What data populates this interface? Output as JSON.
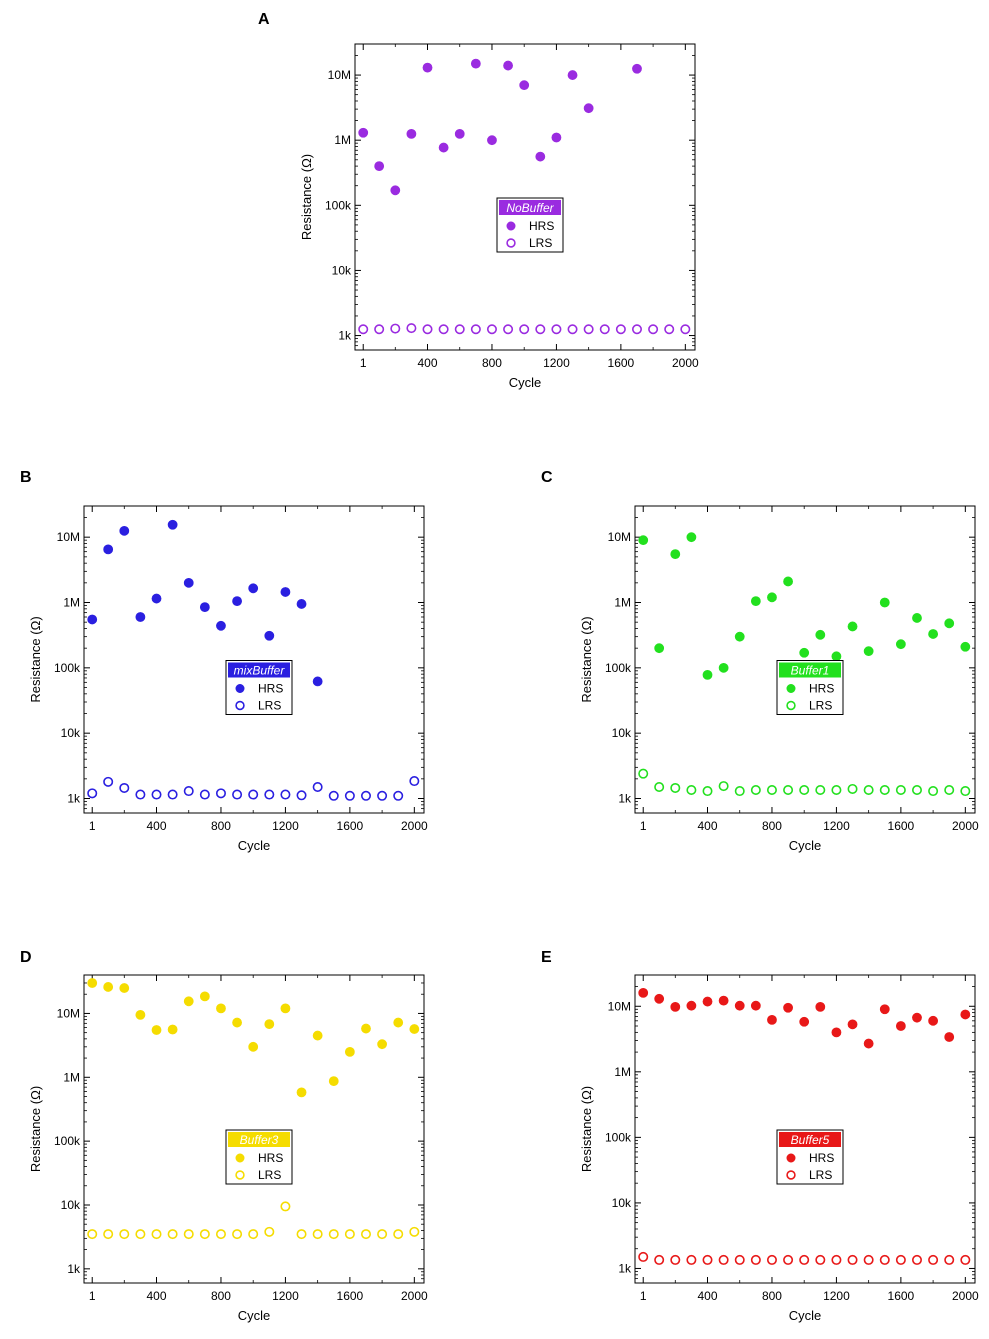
{
  "chart_data": [
    {
      "panel_label": "A",
      "type": "scatter",
      "xlabel": "Cycle",
      "ylabel": "Resistance (Ω)",
      "yscale": "log",
      "xlim": [
        -50,
        2060
      ],
      "ylim": [
        600,
        30000000
      ],
      "xticks": [
        1,
        400,
        800,
        1200,
        1600,
        2000
      ],
      "xtick_labels": [
        "1",
        "400",
        "800",
        "1200",
        "1600",
        "2000"
      ],
      "yticks": [
        1000,
        10000,
        100000,
        1000000,
        10000000
      ],
      "ytick_labels": [
        "1k",
        "10k",
        "100k",
        "1M",
        "10M"
      ],
      "color": "#9a2be0",
      "legend": {
        "title": "NoBuffer",
        "entries": [
          "HRS",
          "LRS"
        ],
        "position": "center"
      },
      "series": [
        {
          "name": "HRS",
          "marker": "filled-circle",
          "x": [
            1,
            100,
            200,
            300,
            400,
            500,
            600,
            700,
            800,
            900,
            1000,
            1100,
            1200,
            1300,
            1400,
            1700
          ],
          "values": [
            1300000,
            400000,
            170000,
            1250000,
            13000000,
            770000,
            1250000,
            15000000,
            1000000,
            14000000,
            7000000,
            560000,
            1100000,
            10000000,
            3100000,
            12500000
          ]
        },
        {
          "name": "LRS",
          "marker": "open-circle",
          "x": [
            1,
            100,
            200,
            300,
            400,
            500,
            600,
            700,
            800,
            900,
            1000,
            1100,
            1200,
            1300,
            1400,
            1500,
            1600,
            1700,
            1800,
            1900,
            2000
          ],
          "values": [
            1250,
            1250,
            1280,
            1300,
            1250,
            1250,
            1250,
            1250,
            1250,
            1250,
            1250,
            1250,
            1250,
            1250,
            1250,
            1250,
            1250,
            1250,
            1250,
            1250,
            1250
          ]
        }
      ]
    },
    {
      "panel_label": "B",
      "type": "scatter",
      "xlabel": "Cycle",
      "ylabel": "Resistance (Ω)",
      "yscale": "log",
      "xlim": [
        -50,
        2060
      ],
      "ylim": [
        600,
        30000000
      ],
      "xticks": [
        1,
        400,
        800,
        1200,
        1600,
        2000
      ],
      "xtick_labels": [
        "1",
        "400",
        "800",
        "1200",
        "1600",
        "2000"
      ],
      "yticks": [
        1000,
        10000,
        100000,
        1000000,
        10000000
      ],
      "ytick_labels": [
        "1k",
        "10k",
        "100k",
        "1M",
        "10M"
      ],
      "color": "#2a1fe0",
      "legend": {
        "title": "mixBuffer",
        "entries": [
          "HRS",
          "LRS"
        ],
        "position": "center"
      },
      "series": [
        {
          "name": "HRS",
          "marker": "filled-circle",
          "x": [
            1,
            100,
            200,
            300,
            400,
            500,
            600,
            700,
            800,
            900,
            1000,
            1100,
            1200,
            1300,
            1400
          ],
          "values": [
            550000,
            6500000,
            12500000,
            600000,
            1150000,
            15500000,
            2000000,
            850000,
            440000,
            1050000,
            1650000,
            310000,
            1450000,
            950000,
            62000
          ]
        },
        {
          "name": "LRS",
          "marker": "open-circle",
          "x": [
            1,
            100,
            200,
            300,
            400,
            500,
            600,
            700,
            800,
            900,
            1000,
            1100,
            1200,
            1300,
            1400,
            1500,
            1600,
            1700,
            1800,
            1900,
            2000
          ],
          "values": [
            1200,
            1800,
            1450,
            1150,
            1150,
            1150,
            1300,
            1150,
            1200,
            1150,
            1150,
            1150,
            1150,
            1120,
            1500,
            1100,
            1100,
            1100,
            1100,
            1100,
            1850
          ]
        }
      ]
    },
    {
      "panel_label": "C",
      "type": "scatter",
      "xlabel": "Cycle",
      "ylabel": "Resistance (Ω)",
      "yscale": "log",
      "xlim": [
        -50,
        2060
      ],
      "ylim": [
        600,
        30000000
      ],
      "xticks": [
        1,
        400,
        800,
        1200,
        1600,
        2000
      ],
      "xtick_labels": [
        "1",
        "400",
        "800",
        "1200",
        "1600",
        "2000"
      ],
      "yticks": [
        1000,
        10000,
        100000,
        1000000,
        10000000
      ],
      "ytick_labels": [
        "1k",
        "10k",
        "100k",
        "1M",
        "10M"
      ],
      "color": "#22e01e",
      "legend": {
        "title": "Buffer1",
        "entries": [
          "HRS",
          "LRS"
        ],
        "position": "center"
      },
      "series": [
        {
          "name": "HRS",
          "marker": "filled-circle",
          "x": [
            1,
            100,
            200,
            300,
            400,
            500,
            600,
            700,
            800,
            900,
            1000,
            1100,
            1200,
            1300,
            1400,
            1500,
            1600,
            1700,
            1800,
            1900,
            2000
          ],
          "values": [
            9000000,
            200000,
            5500000,
            10000000,
            78000,
            100000,
            300000,
            1050000,
            1200000,
            2100000,
            170000,
            320000,
            150000,
            430000,
            180000,
            1000000,
            230000,
            580000,
            330000,
            480000,
            210000
          ]
        },
        {
          "name": "LRS",
          "marker": "open-circle",
          "x": [
            1,
            100,
            200,
            300,
            400,
            500,
            600,
            700,
            800,
            900,
            1000,
            1100,
            1200,
            1300,
            1400,
            1500,
            1600,
            1700,
            1800,
            1900,
            2000
          ],
          "values": [
            2400,
            1500,
            1450,
            1350,
            1300,
            1550,
            1300,
            1350,
            1350,
            1350,
            1350,
            1350,
            1350,
            1400,
            1350,
            1350,
            1350,
            1350,
            1300,
            1350,
            1300
          ]
        }
      ]
    },
    {
      "panel_label": "D",
      "type": "scatter",
      "xlabel": "Cycle",
      "ylabel": "Resistance (Ω)",
      "yscale": "log",
      "xlim": [
        -50,
        2060
      ],
      "ylim": [
        600,
        40000000
      ],
      "xticks": [
        1,
        400,
        800,
        1200,
        1600,
        2000
      ],
      "xtick_labels": [
        "1",
        "400",
        "800",
        "1200",
        "1600",
        "2000"
      ],
      "yticks": [
        1000,
        10000,
        100000,
        1000000,
        10000000
      ],
      "ytick_labels": [
        "1k",
        "10k",
        "100k",
        "1M",
        "10M"
      ],
      "color": "#f5dc00",
      "legend": {
        "title": "Buffer3",
        "entries": [
          "HRS",
          "LRS"
        ],
        "position": "center"
      },
      "series": [
        {
          "name": "HRS",
          "marker": "filled-circle",
          "x": [
            1,
            100,
            200,
            300,
            400,
            500,
            600,
            700,
            800,
            900,
            1000,
            1100,
            1200,
            1300,
            1400,
            1500,
            1600,
            1700,
            1800,
            1900,
            2000
          ],
          "values": [
            30000000,
            26000000,
            25000000,
            9500000,
            5500000,
            5600000,
            15500000,
            18500000,
            12000000,
            7200000,
            3000000,
            6800000,
            12000000,
            580000,
            4500000,
            870000,
            2500000,
            5800000,
            3300000,
            7200000,
            5700000
          ]
        },
        {
          "name": "LRS",
          "marker": "open-circle",
          "x": [
            1,
            100,
            200,
            300,
            400,
            500,
            600,
            700,
            800,
            900,
            1000,
            1100,
            1200,
            1300,
            1400,
            1500,
            1600,
            1700,
            1800,
            1900,
            2000
          ],
          "values": [
            3500,
            3500,
            3500,
            3500,
            3500,
            3500,
            3500,
            3500,
            3500,
            3500,
            3500,
            3800,
            9500,
            3500,
            3500,
            3500,
            3500,
            3500,
            3500,
            3500,
            3800
          ]
        }
      ]
    },
    {
      "panel_label": "E",
      "type": "scatter",
      "xlabel": "Cycle",
      "ylabel": "Resistance (Ω)",
      "yscale": "log",
      "xlim": [
        -50,
        2060
      ],
      "ylim": [
        600,
        30000000
      ],
      "xticks": [
        1,
        400,
        800,
        1200,
        1600,
        2000
      ],
      "xtick_labels": [
        "1",
        "400",
        "800",
        "1200",
        "1600",
        "2000"
      ],
      "yticks": [
        1000,
        10000,
        100000,
        1000000,
        10000000
      ],
      "ytick_labels": [
        "1k",
        "10k",
        "100k",
        "1M",
        "10M"
      ],
      "color": "#e81818",
      "legend": {
        "title": "Buffer5",
        "entries": [
          "HRS",
          "LRS"
        ],
        "position": "center"
      },
      "series": [
        {
          "name": "HRS",
          "marker": "filled-circle",
          "x": [
            1,
            100,
            200,
            300,
            400,
            500,
            600,
            700,
            800,
            900,
            1000,
            1100,
            1200,
            1300,
            1400,
            1500,
            1600,
            1700,
            1800,
            1900,
            2000
          ],
          "values": [
            16000000,
            13000000,
            9800000,
            10200000,
            11800000,
            12200000,
            10200000,
            10200000,
            6200000,
            9500000,
            5800000,
            9800000,
            4000000,
            5300000,
            2700000,
            9000000,
            5000000,
            6700000,
            6000000,
            3400000,
            7500000
          ]
        },
        {
          "name": "LRS",
          "marker": "open-circle",
          "x": [
            1,
            100,
            200,
            300,
            400,
            500,
            600,
            700,
            800,
            900,
            1000,
            1100,
            1200,
            1300,
            1400,
            1500,
            1600,
            1700,
            1800,
            1900,
            2000
          ],
          "values": [
            1500,
            1350,
            1350,
            1350,
            1350,
            1350,
            1350,
            1350,
            1350,
            1350,
            1350,
            1350,
            1350,
            1350,
            1350,
            1350,
            1350,
            1350,
            1350,
            1350,
            1350
          ]
        }
      ]
    }
  ]
}
